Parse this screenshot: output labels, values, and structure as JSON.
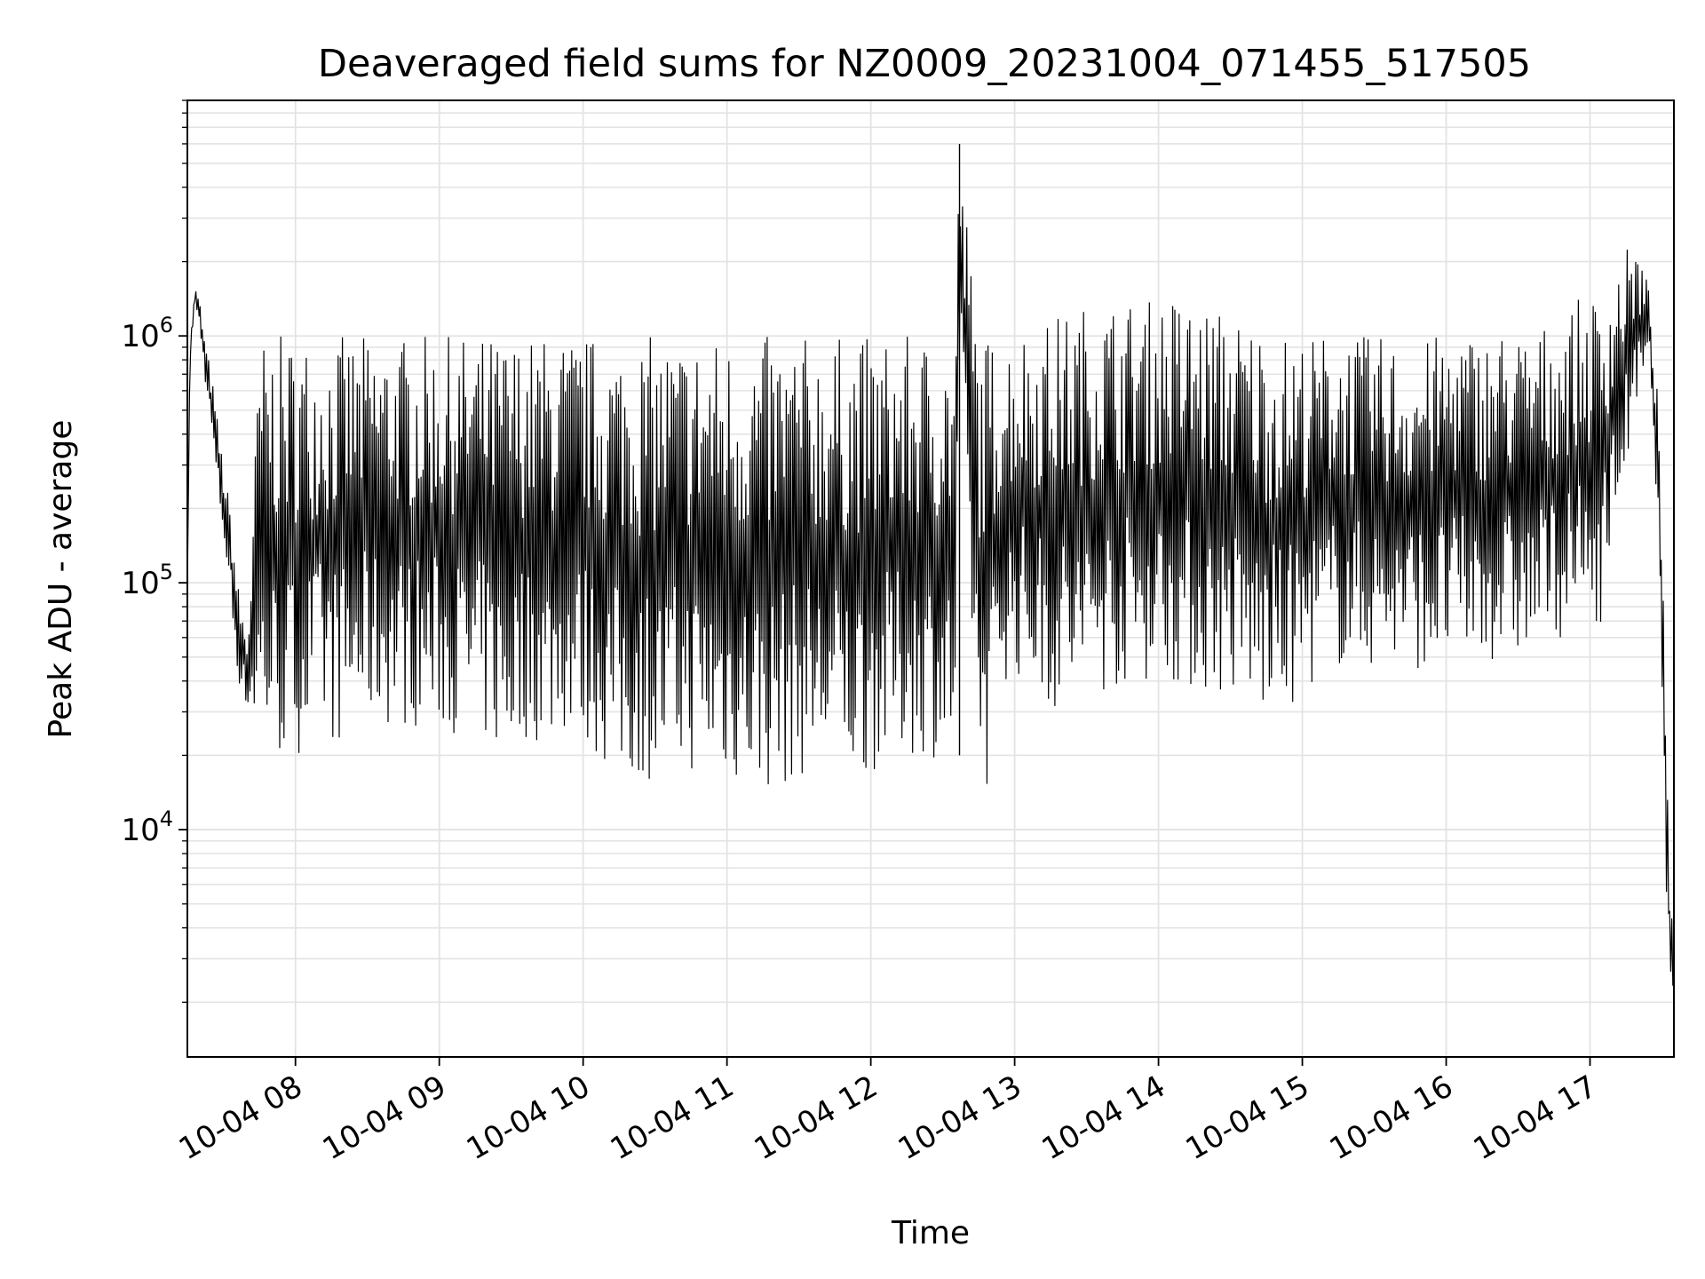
{
  "chart_data": {
    "type": "line",
    "title": "Deaveraged field sums for NZ0009_20231004_071455_517505",
    "xlabel": "Time",
    "ylabel": "Peak ADU - average",
    "yscale": "log",
    "ylim": [
      1200,
      9000000
    ],
    "xlim": [
      "2023-10-04 07:14:55",
      "2023-10-04 17:35:00"
    ],
    "grid": true,
    "line_color": "#000000",
    "x_ticks": [
      {
        "value": "2023-10-04 08:00",
        "label": "10-04 08"
      },
      {
        "value": "2023-10-04 09:00",
        "label": "10-04 09"
      },
      {
        "value": "2023-10-04 10:00",
        "label": "10-04 10"
      },
      {
        "value": "2023-10-04 11:00",
        "label": "10-04 11"
      },
      {
        "value": "2023-10-04 12:00",
        "label": "10-04 12"
      },
      {
        "value": "2023-10-04 13:00",
        "label": "10-04 13"
      },
      {
        "value": "2023-10-04 14:00",
        "label": "10-04 14"
      },
      {
        "value": "2023-10-04 15:00",
        "label": "10-04 15"
      },
      {
        "value": "2023-10-04 16:00",
        "label": "10-04 16"
      },
      {
        "value": "2023-10-04 17:00",
        "label": "10-04 17"
      }
    ],
    "y_ticks": [
      {
        "value": 10000,
        "base": "10",
        "exp": "4"
      },
      {
        "value": 100000,
        "base": "10",
        "exp": "5"
      },
      {
        "value": 1000000,
        "base": "10",
        "exp": "6"
      }
    ],
    "series": [
      {
        "x": [
          "2023-10-04 07:14:55",
          "2023-10-04 07:16:00",
          "2023-10-04 07:18:00",
          "2023-10-04 07:20:00",
          "2023-10-04 07:22:00",
          "2023-10-04 07:25:00",
          "2023-10-04 07:27:00",
          "2023-10-04 07:30:00",
          "2023-10-04 07:33:00",
          "2023-10-04 07:36:00",
          "2023-10-04 07:40:00",
          "2023-10-04 07:45:00",
          "2023-10-04 07:50:00",
          "2023-10-04 07:55:00",
          "2023-10-04 08:00:00",
          "2023-10-04 08:10:00",
          "2023-10-04 08:20:00",
          "2023-10-04 08:30:00",
          "2023-10-04 08:40:00",
          "2023-10-04 08:50:00",
          "2023-10-04 09:00:00",
          "2023-10-04 09:10:00",
          "2023-10-04 09:20:00",
          "2023-10-04 09:27:00",
          "2023-10-04 09:35:00",
          "2023-10-04 09:45:00",
          "2023-10-04 09:55:00",
          "2023-10-04 10:05:00",
          "2023-10-04 10:15:00",
          "2023-10-04 10:25:00",
          "2023-10-04 10:35:00",
          "2023-10-04 10:45:00",
          "2023-10-04 10:55:00",
          "2023-10-04 11:05:00",
          "2023-10-04 11:15:00",
          "2023-10-04 11:25:00",
          "2023-10-04 11:35:00",
          "2023-10-04 11:45:00",
          "2023-10-04 11:55:00",
          "2023-10-04 12:05:00",
          "2023-10-04 12:15:00",
          "2023-10-04 12:25:00",
          "2023-10-04 12:35:00",
          "2023-10-04 12:37:00",
          "2023-10-04 12:45:00",
          "2023-10-04 12:50:00",
          "2023-10-04 12:55:00",
          "2023-10-04 13:05:00",
          "2023-10-04 13:15:00",
          "2023-10-04 13:25:00",
          "2023-10-04 13:35:00",
          "2023-10-04 13:45:00",
          "2023-10-04 13:55:00",
          "2023-10-04 14:05:00",
          "2023-10-04 14:15:00",
          "2023-10-04 14:25:00",
          "2023-10-04 14:35:00",
          "2023-10-04 14:45:00",
          "2023-10-04 14:55:00",
          "2023-10-04 15:05:00",
          "2023-10-04 15:15:00",
          "2023-10-04 15:25:00",
          "2023-10-04 15:35:00",
          "2023-10-04 15:45:00",
          "2023-10-04 15:55:00",
          "2023-10-04 16:05:00",
          "2023-10-04 16:15:00",
          "2023-10-04 16:25:00",
          "2023-10-04 16:35:00",
          "2023-10-04 16:45:00",
          "2023-10-04 16:55:00",
          "2023-10-04 17:05:00",
          "2023-10-04 17:12:00",
          "2023-10-04 17:18:00",
          "2023-10-04 17:22:00",
          "2023-10-04 17:25:00",
          "2023-10-04 17:28:00",
          "2023-10-04 17:31:00",
          "2023-10-04 17:33:00",
          "2023-10-04 17:35:00"
        ],
        "y_low": [
          90000,
          800000,
          1300000,
          1100000,
          700000,
          400000,
          250000,
          150000,
          80000,
          40000,
          30000,
          22000,
          20000,
          18000,
          20000,
          23000,
          22000,
          27000,
          26000,
          26000,
          25000,
          24000,
          22000,
          18000,
          23000,
          22000,
          25000,
          20000,
          15000,
          16000,
          15000,
          17000,
          16000,
          15000,
          14000,
          15000,
          17000,
          16000,
          16000,
          18000,
          20000,
          20000,
          17000,
          600000,
          15000,
          15000,
          40000,
          40000,
          30000,
          30000,
          35000,
          38000,
          40000,
          40000,
          35000,
          35000,
          32000,
          28000,
          30000,
          40000,
          45000,
          45000,
          45000,
          45000,
          45000,
          45000,
          48000,
          48000,
          50000,
          60000,
          60000,
          70000,
          200000,
          400000,
          600000,
          700000,
          200000,
          8000,
          3000,
          1800
        ],
        "y_high": [
          100000,
          900000,
          1600000,
          1400000,
          1000000,
          700000,
          500000,
          300000,
          200000,
          100000,
          60000,
          950000,
          1000000,
          1000000,
          1000000,
          1000000,
          1000000,
          1000000,
          1000000,
          1000000,
          1000000,
          1000000,
          1000000,
          1000000,
          1000000,
          1000000,
          1000000,
          1000000,
          1000000,
          1000000,
          1000000,
          1000000,
          1000000,
          1000000,
          1000000,
          1000000,
          1000000,
          1000000,
          1000000,
          1000000,
          1000000,
          1000000,
          1000000,
          6000000,
          1000000,
          1000000,
          1000000,
          1100000,
          1200000,
          1300000,
          1400000,
          1400000,
          1400000,
          1500000,
          1400000,
          1300000,
          1200000,
          1100000,
          1000000,
          1000000,
          1100000,
          1000000,
          1000000,
          900000,
          1000000,
          1100000,
          1000000,
          1100000,
          1000000,
          1200000,
          1400000,
          1500000,
          2000000,
          2500000,
          2000000,
          1500000,
          600000,
          100000,
          5000,
          4000
        ]
      }
    ]
  }
}
